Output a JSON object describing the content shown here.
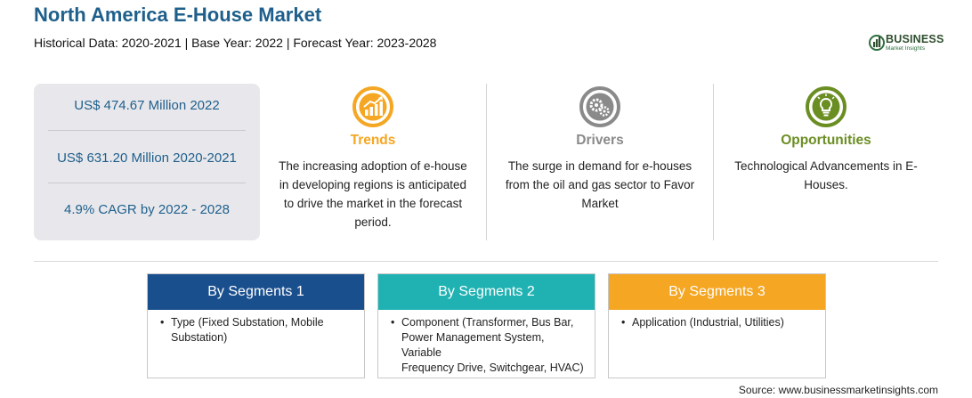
{
  "header": {
    "title": "North America E-House Market",
    "subtitle": "Historical Data: 2020-2021 | Base Year: 2022 | Forecast Year: 2023-2028"
  },
  "logo": {
    "word": "BUSINESS",
    "sub": "Market Insights"
  },
  "stats": [
    "US$ 474.67 Million 2022",
    "US$ 631.20 Million 2020-2021",
    "4.9% CAGR by 2022 - 2028"
  ],
  "columns": [
    {
      "title": "Trends",
      "color": "#f5a623",
      "icon": "trend-chart-icon",
      "lines": [
        "The increasing adoption of e-house",
        "in developing regions is anticipated",
        "to drive the market in the forecast",
        "period."
      ]
    },
    {
      "title": "Drivers",
      "color": "#8a8a8a",
      "icon": "gears-icon",
      "lines": [
        "The surge in demand for e-houses",
        "from the oil and gas sector to Favor",
        "Market"
      ]
    },
    {
      "title": "Opportunities",
      "color": "#6b8e23",
      "icon": "lightbulb-icon",
      "lines": [
        "Technological Advancements in E-",
        "Houses."
      ]
    }
  ],
  "segments": [
    {
      "heading": "By Segments 1",
      "color": "#1a4f8e",
      "bullet": "•",
      "lines": [
        "Type (Fixed Substation, Mobile",
        "Substation)"
      ]
    },
    {
      "heading": "By Segments 2",
      "color": "#20b2b2",
      "bullet": "•",
      "lines": [
        "Component (Transformer, Bus Bar,",
        "Power Management System, Variable",
        "Frequency Drive, Switchgear, HVAC)"
      ]
    },
    {
      "heading": "By Segments 3",
      "color": "#f5a623",
      "bullet": "•",
      "lines": [
        "Application (Industrial, Utilities)"
      ]
    }
  ],
  "source": "Source: www.businessmarketinsights.com"
}
